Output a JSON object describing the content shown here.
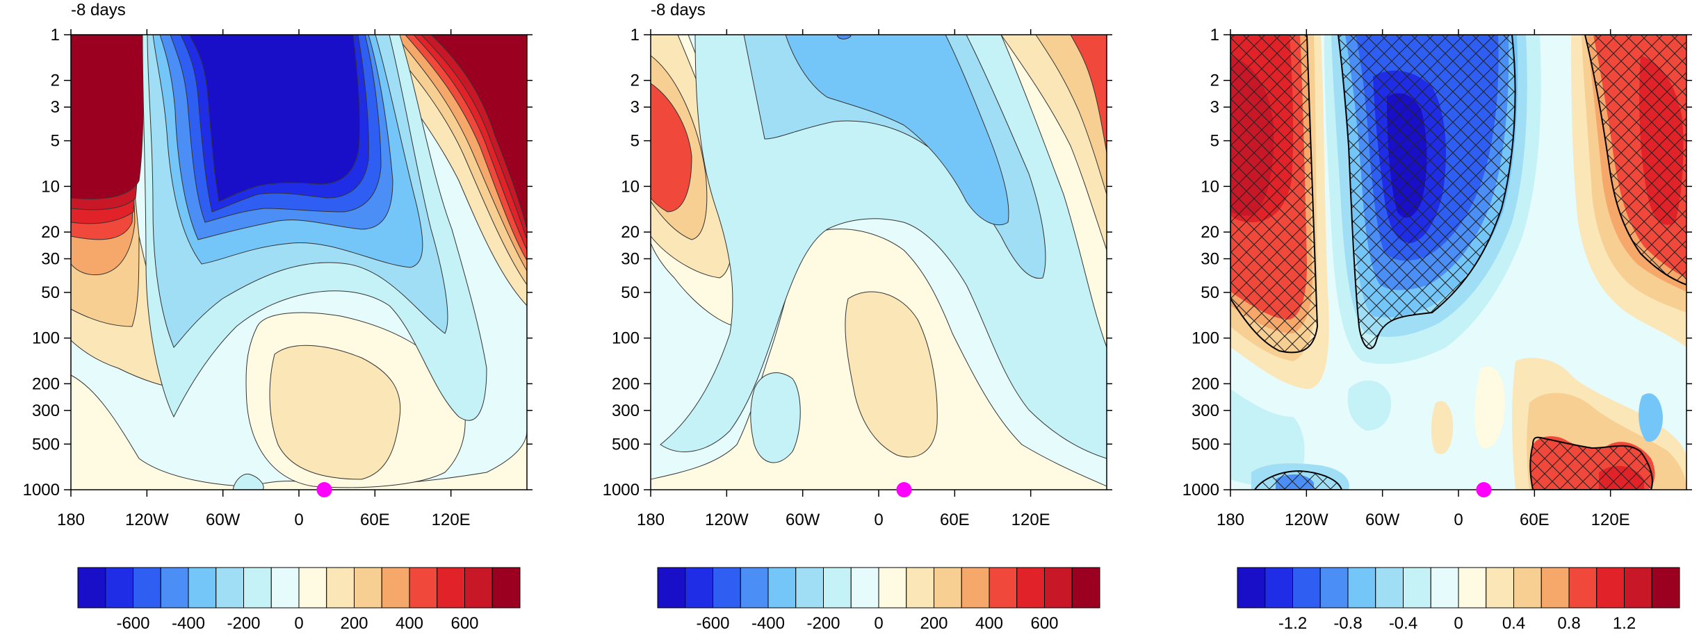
{
  "chart_data": [
    {
      "type": "contour",
      "title": "-8 days",
      "xlabel": "",
      "ylabel": "",
      "xticks": [
        "180",
        "120W",
        "60W",
        "0",
        "60E",
        "120E"
      ],
      "yticks": [
        "1",
        "2",
        "3",
        "5",
        "10",
        "20",
        "30",
        "50",
        "100",
        "200",
        "300",
        "500",
        "1000"
      ],
      "ytick_values": [
        1,
        2,
        3,
        5,
        10,
        20,
        30,
        50,
        100,
        200,
        300,
        500,
        1000
      ],
      "xtick_values": [
        -180,
        -120,
        -60,
        0,
        60,
        120
      ],
      "xlim": [
        -180,
        180
      ],
      "ylim": [
        1000,
        1
      ],
      "y_scale": "log",
      "marker": {
        "lon": 20,
        "pressure": 1000,
        "color": "#ff00ff"
      },
      "colorbar": {
        "colors": [
          "#1a0fc8",
          "#1f2ee6",
          "#2e5ff2",
          "#4a8ef6",
          "#75c6f8",
          "#9fdef4",
          "#c4f2f6",
          "#e6fbfc",
          "#fefbe2",
          "#fbe6b8",
          "#f8cf92",
          "#f5a86a",
          "#f0483a",
          "#e12228",
          "#c81828",
          "#9b0020"
        ],
        "labels": [
          "-600",
          "-400",
          "-200",
          "0",
          "200",
          "400",
          "600"
        ]
      }
    },
    {
      "type": "contour",
      "title": "-8 days",
      "xlabel": "",
      "ylabel": "",
      "xticks": [
        "180",
        "120W",
        "60W",
        "0",
        "60E",
        "120E"
      ],
      "yticks": [
        "1",
        "2",
        "3",
        "5",
        "10",
        "20",
        "30",
        "50",
        "100",
        "200",
        "300",
        "500",
        "1000"
      ],
      "ytick_values": [
        1,
        2,
        3,
        5,
        10,
        20,
        30,
        50,
        100,
        200,
        300,
        500,
        1000
      ],
      "xtick_values": [
        -180,
        -120,
        -60,
        0,
        60,
        120
      ],
      "xlim": [
        -180,
        180
      ],
      "ylim": [
        1000,
        1
      ],
      "y_scale": "log",
      "marker": {
        "lon": 20,
        "pressure": 1000,
        "color": "#ff00ff"
      },
      "colorbar": {
        "colors": [
          "#1a0fc8",
          "#1f2ee6",
          "#2e5ff2",
          "#4a8ef6",
          "#75c6f8",
          "#9fdef4",
          "#c4f2f6",
          "#e6fbfc",
          "#fefbe2",
          "#fbe6b8",
          "#f8cf92",
          "#f5a86a",
          "#f0483a",
          "#e12228",
          "#c81828",
          "#9b0020"
        ],
        "labels": [
          "-600",
          "-400",
          "-200",
          "0",
          "200",
          "400",
          "600"
        ]
      }
    },
    {
      "type": "contour",
      "title": "",
      "xlabel": "",
      "ylabel": "",
      "xticks": [
        "180",
        "120W",
        "60W",
        "0",
        "60E",
        "120E"
      ],
      "yticks": [
        "1",
        "2",
        "3",
        "5",
        "10",
        "20",
        "30",
        "50",
        "100",
        "200",
        "300",
        "500",
        "1000"
      ],
      "ytick_values": [
        1,
        2,
        3,
        5,
        10,
        20,
        30,
        50,
        100,
        200,
        300,
        500,
        1000
      ],
      "xtick_values": [
        -180,
        -120,
        -60,
        0,
        60,
        120
      ],
      "xlim": [
        -180,
        180
      ],
      "ylim": [
        1000,
        1
      ],
      "y_scale": "log",
      "marker": {
        "lon": 20,
        "pressure": 1000,
        "color": "#ff00ff"
      },
      "hatching": "significance",
      "colorbar": {
        "colors": [
          "#1a0fc8",
          "#1f2ee6",
          "#2e5ff2",
          "#4a8ef6",
          "#75c6f8",
          "#9fdef4",
          "#c4f2f6",
          "#e6fbfc",
          "#fefbe2",
          "#fbe6b8",
          "#f8cf92",
          "#f5a86a",
          "#f0483a",
          "#e12228",
          "#c81828",
          "#9b0020"
        ],
        "labels": [
          "-1.2",
          "-0.8",
          "-0.4",
          "0",
          "0.4",
          "0.8",
          "1.2"
        ]
      }
    }
  ]
}
